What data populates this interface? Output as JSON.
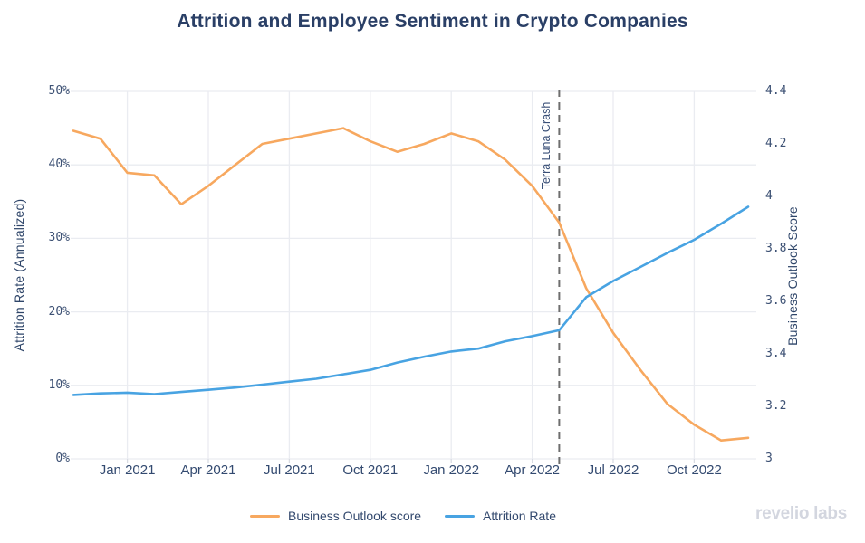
{
  "title": "Attrition and Employee Sentiment in Crypto Companies",
  "left_axis": {
    "title": "Attrition Rate (Annualized)",
    "tick_labels": [
      "0%",
      "10%",
      "20%",
      "30%",
      "40%",
      "50%"
    ]
  },
  "right_axis": {
    "title": "Business Outlook Score",
    "tick_labels": [
      "3",
      "3.2",
      "3.4",
      "3.6",
      "3.8",
      "4",
      "4.2",
      "4.4"
    ]
  },
  "x_axis": {
    "tick_labels": [
      "Jan 2021",
      "Apr 2021",
      "Jul 2021",
      "Oct 2021",
      "Jan 2022",
      "Apr 2022",
      "Jul 2022",
      "Oct 2022"
    ]
  },
  "annotation": {
    "label": "Terra Luna Crash"
  },
  "legend": [
    {
      "label": "Business Outlook score",
      "color": "#f7a85f"
    },
    {
      "label": "Attrition Rate",
      "color": "#48a3e2"
    }
  ],
  "branding": "revelio labs",
  "colors": {
    "title_text": "#2a3f66",
    "tick_text": "#3d5174",
    "gridline": "#eaecf1",
    "dashed_line": "#6e6e6e",
    "outlook_line": "#f7a85f",
    "attrition_line": "#48a3e2",
    "brand_gray": "#d3d6df"
  },
  "chart_data": {
    "type": "line",
    "title": "Attrition and Employee Sentiment in Crypto Companies",
    "x": [
      "Nov 2020",
      "Dec 2020",
      "Jan 2021",
      "Feb 2021",
      "Mar 2021",
      "Apr 2021",
      "May 2021",
      "Jun 2021",
      "Jul 2021",
      "Aug 2021",
      "Sep 2021",
      "Oct 2021",
      "Nov 2021",
      "Dec 2021",
      "Jan 2022",
      "Feb 2022",
      "Mar 2022",
      "Apr 2022",
      "May 2022",
      "Jun 2022",
      "Jul 2022",
      "Aug 2022",
      "Sep 2022",
      "Oct 2022",
      "Nov 2022",
      "Dec 2022"
    ],
    "series": [
      {
        "name": "Business Outlook score",
        "axis": "right",
        "color": "#f7a85f",
        "values": [
          4.25,
          4.22,
          4.09,
          4.08,
          3.97,
          4.04,
          4.12,
          4.2,
          4.22,
          4.24,
          4.26,
          4.21,
          4.17,
          4.2,
          4.24,
          4.21,
          4.14,
          4.04,
          3.9,
          3.65,
          3.48,
          3.34,
          3.21,
          3.13,
          3.07,
          3.08
        ]
      },
      {
        "name": "Attrition Rate",
        "axis": "left",
        "color": "#48a3e2",
        "values": [
          8.7,
          8.9,
          9.0,
          8.8,
          9.1,
          9.4,
          9.7,
          10.1,
          10.5,
          10.9,
          11.5,
          12.1,
          13.1,
          13.9,
          14.6,
          15.0,
          16.0,
          16.7,
          17.5,
          22.0,
          24.2,
          26.1,
          28.0,
          29.8,
          32.0,
          34.3
        ]
      }
    ],
    "left_ticks": [
      0,
      10,
      20,
      30,
      40,
      50
    ],
    "right_ticks": [
      3,
      3.2,
      3.4,
      3.6,
      3.8,
      4,
      4.2,
      4.4
    ],
    "left_range": [
      0,
      50
    ],
    "right_range": [
      3,
      4.4
    ],
    "x_tick_indices": [
      2,
      5,
      8,
      11,
      14,
      17,
      20,
      23
    ],
    "annotation_index": 18,
    "grid": true,
    "legend_position": "bottom-center"
  }
}
